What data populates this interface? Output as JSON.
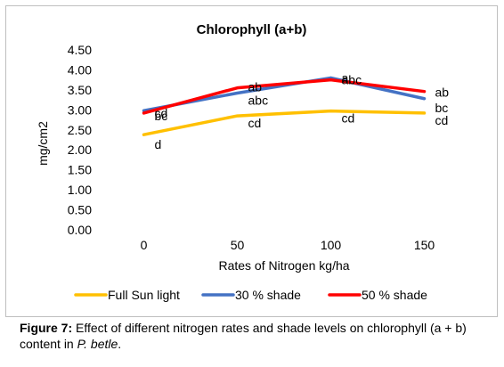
{
  "chart_data": {
    "type": "line",
    "title": "Chlorophyll (a+b)",
    "xlabel": "Rates of Nitrogen kg/ha",
    "ylabel": "mg/cm2",
    "categories": [
      "0",
      "50",
      "100",
      "150"
    ],
    "ylim": [
      0,
      4.5
    ],
    "yticks": [
      "0.00",
      "0.50",
      "1.00",
      "1.50",
      "2.00",
      "2.50",
      "3.00",
      "3.50",
      "4.00",
      "4.50"
    ],
    "grid": false,
    "legend_position": "bottom",
    "series": [
      {
        "name": "Full Sun light",
        "color": "#ffc000",
        "values": [
          2.38,
          2.85,
          2.97,
          2.92
        ],
        "labels": [
          "d",
          "cd",
          "cd",
          "cd"
        ]
      },
      {
        "name": "30 % shade",
        "color": "#4472c4",
        "values": [
          2.98,
          3.42,
          3.8,
          3.28
        ],
        "labels": [
          "bc",
          "abc",
          "a",
          "bc"
        ]
      },
      {
        "name": "50 % shade",
        "color": "#ff0000",
        "values": [
          2.92,
          3.55,
          3.75,
          3.46
        ],
        "labels": [
          "cd",
          "ab",
          "abc",
          "ab"
        ]
      }
    ]
  },
  "caption": {
    "figure_label": "Figure 7:",
    "text_before": " Effect of different nitrogen rates and shade levels on chlorophyll (a + b) content in ",
    "species": "P. betle",
    "text_after": "."
  }
}
